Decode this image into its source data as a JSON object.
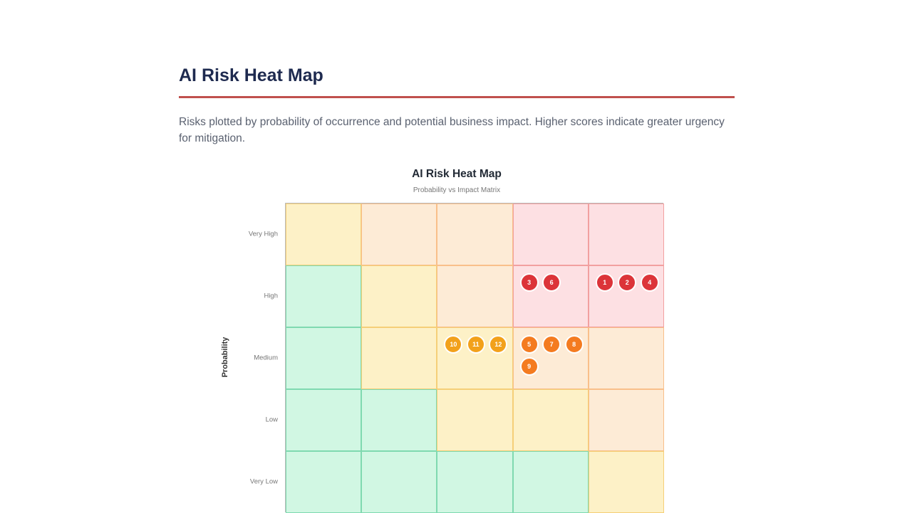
{
  "page": {
    "title": "AI Risk Heat Map",
    "description": "Risks plotted by probability of occurrence and potential business impact. Higher scores indicate greater urgency for mitigation."
  },
  "chart_data": {
    "type": "heatmap",
    "title": "AI Risk Heat Map",
    "subtitle": "Probability vs Impact Matrix",
    "ylabel": "Probability",
    "xlabel": "",
    "y_categories": [
      "Very High",
      "High",
      "Medium",
      "Low",
      "Very Low"
    ],
    "x_levels": 5,
    "zone_colors": {
      "low": {
        "fill": "#d1f7e3",
        "border": "#7fd9b0"
      },
      "medium": {
        "fill": "#fdf1c7",
        "border": "#f5cf78"
      },
      "high": {
        "fill": "#fdebd6",
        "border": "#f9bf8a"
      },
      "critical": {
        "fill": "#fde0e3",
        "border": "#f2a0a0"
      }
    },
    "zones": [
      [
        "medium",
        "high",
        "high",
        "critical",
        "critical"
      ],
      [
        "low",
        "medium",
        "high",
        "critical",
        "critical"
      ],
      [
        "low",
        "medium",
        "medium",
        "high",
        "high"
      ],
      [
        "low",
        "low",
        "medium",
        "medium",
        "high"
      ],
      [
        "low",
        "low",
        "low",
        "low",
        "medium"
      ]
    ],
    "risks": [
      {
        "id": "1",
        "probability": "High",
        "impact": 5,
        "level": "critical"
      },
      {
        "id": "2",
        "probability": "High",
        "impact": 5,
        "level": "critical"
      },
      {
        "id": "4",
        "probability": "High",
        "impact": 5,
        "level": "critical"
      },
      {
        "id": "3",
        "probability": "High",
        "impact": 4,
        "level": "critical"
      },
      {
        "id": "6",
        "probability": "High",
        "impact": 4,
        "level": "critical"
      },
      {
        "id": "5",
        "probability": "Medium",
        "impact": 4,
        "level": "high"
      },
      {
        "id": "7",
        "probability": "Medium",
        "impact": 4,
        "level": "high"
      },
      {
        "id": "8",
        "probability": "Medium",
        "impact": 4,
        "level": "high"
      },
      {
        "id": "9",
        "probability": "Medium",
        "impact": 4,
        "level": "high"
      },
      {
        "id": "10",
        "probability": "Medium",
        "impact": 3,
        "level": "medium"
      },
      {
        "id": "11",
        "probability": "Medium",
        "impact": 3,
        "level": "medium"
      },
      {
        "id": "12",
        "probability": "Medium",
        "impact": 3,
        "level": "medium"
      }
    ],
    "marker_colors": {
      "critical": "#dc3439",
      "high": "#f47b20",
      "medium": "#f2a11b"
    }
  }
}
